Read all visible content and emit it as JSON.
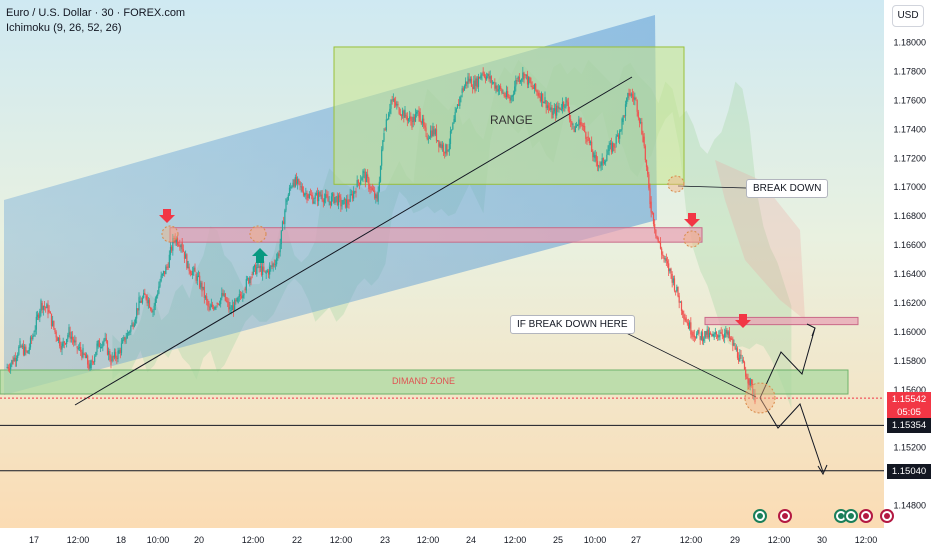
{
  "header": {
    "title": "Euro / U.S. Dollar · 30 · FOREX.com",
    "indicator": "Ichimoku (9, 26, 52, 26)"
  },
  "currency": "USD",
  "annotations": {
    "range": "RANGE",
    "break_down": "BREAK DOWN",
    "if_break_down": "IF BREAK DOWN HERE",
    "demand_zone": "DIMAND ZONE"
  },
  "price_labels": {
    "current_price": "1.15542",
    "countdown": "05:05",
    "level_1": "1.15354",
    "level_2": "1.15040"
  },
  "colors": {
    "bull": "#26a69a",
    "bear": "#ef5350",
    "channel": "#5b9bd5",
    "range_box": "#c9e58a",
    "resistance_zone": "#e8a0b4",
    "demand_zone": "#a8d8a0",
    "arrow_down": "#f23645",
    "arrow_up": "#089981"
  },
  "chart_data": {
    "type": "candlestick",
    "symbol": "EURUSD",
    "timeframe": "30",
    "y_axis": {
      "ylim": [
        1.147,
        1.182
      ],
      "ticks": [
        "1.18000",
        "1.17800",
        "1.17600",
        "1.17400",
        "1.17200",
        "1.17000",
        "1.16800",
        "1.16600",
        "1.16400",
        "1.16200",
        "1.16000",
        "1.15800",
        "1.15600",
        "1.15200",
        "1.14800"
      ]
    },
    "x_ticks": [
      "17",
      "12:00",
      "18",
      "10:00",
      "20",
      "12:00",
      "22",
      "12:00",
      "23",
      "12:00",
      "24",
      "12:00",
      "25",
      "10:00",
      "27",
      "12:00",
      "29",
      "12:00",
      "30",
      "12:00"
    ],
    "close_path": [
      [
        0,
        1.1575
      ],
      [
        1,
        1.158
      ],
      [
        2,
        1.159
      ],
      [
        3,
        1.1585
      ],
      [
        4,
        1.16
      ],
      [
        5,
        1.162
      ],
      [
        6,
        1.1615
      ],
      [
        7,
        1.16
      ],
      [
        8,
        1.159
      ],
      [
        9,
        1.16
      ],
      [
        10,
        1.159
      ],
      [
        11,
        1.1585
      ],
      [
        12,
        1.1575
      ],
      [
        13,
        1.159
      ],
      [
        14,
        1.1595
      ],
      [
        15,
        1.158
      ],
      [
        16,
        1.1585
      ],
      [
        17,
        1.1595
      ],
      [
        18,
        1.1605
      ],
      [
        19,
        1.162
      ],
      [
        20,
        1.1625
      ],
      [
        21,
        1.1615
      ],
      [
        22,
        1.1635
      ],
      [
        23,
        1.1645
      ],
      [
        24,
        1.1665
      ],
      [
        25,
        1.1662
      ],
      [
        26,
        1.1645
      ],
      [
        27,
        1.164
      ],
      [
        28,
        1.163
      ],
      [
        29,
        1.1615
      ],
      [
        30,
        1.162
      ],
      [
        31,
        1.1625
      ],
      [
        32,
        1.1615
      ],
      [
        33,
        1.162
      ],
      [
        34,
        1.163
      ],
      [
        35,
        1.164
      ],
      [
        36,
        1.1645
      ],
      [
        37,
        1.164
      ],
      [
        38,
        1.1645
      ],
      [
        39,
        1.1655
      ],
      [
        40,
        1.169
      ],
      [
        41,
        1.1705
      ],
      [
        42,
        1.17
      ],
      [
        43,
        1.1695
      ],
      [
        44,
        1.1692
      ],
      [
        45,
        1.1695
      ],
      [
        46,
        1.169
      ],
      [
        47,
        1.1693
      ],
      [
        48,
        1.1688
      ],
      [
        49,
        1.169
      ],
      [
        50,
        1.17
      ],
      [
        51,
        1.171
      ],
      [
        52,
        1.17
      ],
      [
        53,
        1.169
      ],
      [
        54,
        1.174
      ],
      [
        55,
        1.176
      ],
      [
        56,
        1.1755
      ],
      [
        57,
        1.175
      ],
      [
        58,
        1.1745
      ],
      [
        59,
        1.1752
      ],
      [
        60,
        1.1735
      ],
      [
        61,
        1.174
      ],
      [
        62,
        1.173
      ],
      [
        63,
        1.1725
      ],
      [
        64,
        1.1745
      ],
      [
        65,
        1.1765
      ],
      [
        66,
        1.1775
      ],
      [
        67,
        1.177
      ],
      [
        68,
        1.178
      ],
      [
        69,
        1.1775
      ],
      [
        70,
        1.177
      ],
      [
        71,
        1.1765
      ],
      [
        72,
        1.176
      ],
      [
        73,
        1.1775
      ],
      [
        74,
        1.1778
      ],
      [
        75,
        1.177
      ],
      [
        76,
        1.1765
      ],
      [
        77,
        1.176
      ],
      [
        78,
        1.175
      ],
      [
        79,
        1.1755
      ],
      [
        80,
        1.176
      ],
      [
        81,
        1.174
      ],
      [
        82,
        1.1745
      ],
      [
        83,
        1.1735
      ],
      [
        84,
        1.172
      ],
      [
        85,
        1.1715
      ],
      [
        86,
        1.1725
      ],
      [
        87,
        1.173
      ],
      [
        88,
        1.1745
      ],
      [
        89,
        1.1765
      ],
      [
        90,
        1.176
      ],
      [
        91,
        1.1735
      ],
      [
        92,
        1.169
      ],
      [
        93,
        1.1665
      ],
      [
        94,
        1.165
      ],
      [
        95,
        1.164
      ],
      [
        96,
        1.1625
      ],
      [
        97,
        1.161
      ],
      [
        98,
        1.16
      ],
      [
        99,
        1.1597
      ],
      [
        100,
        1.1598
      ],
      [
        101,
        1.1596
      ],
      [
        102,
        1.16
      ],
      [
        103,
        1.1598
      ],
      [
        104,
        1.159
      ],
      [
        105,
        1.158
      ],
      [
        106,
        1.1568
      ],
      [
        107,
        1.1555
      ]
    ],
    "zones": {
      "range_box": [
        1.1702,
        1.179
      ],
      "resistance_zone": [
        1.1662,
        1.1672
      ],
      "upper_resistance": [
        1.1605,
        1.161
      ],
      "demand_zone": [
        1.1555,
        1.1572
      ]
    },
    "levels": [
      1.15542,
      1.15354,
      1.1504
    ]
  }
}
